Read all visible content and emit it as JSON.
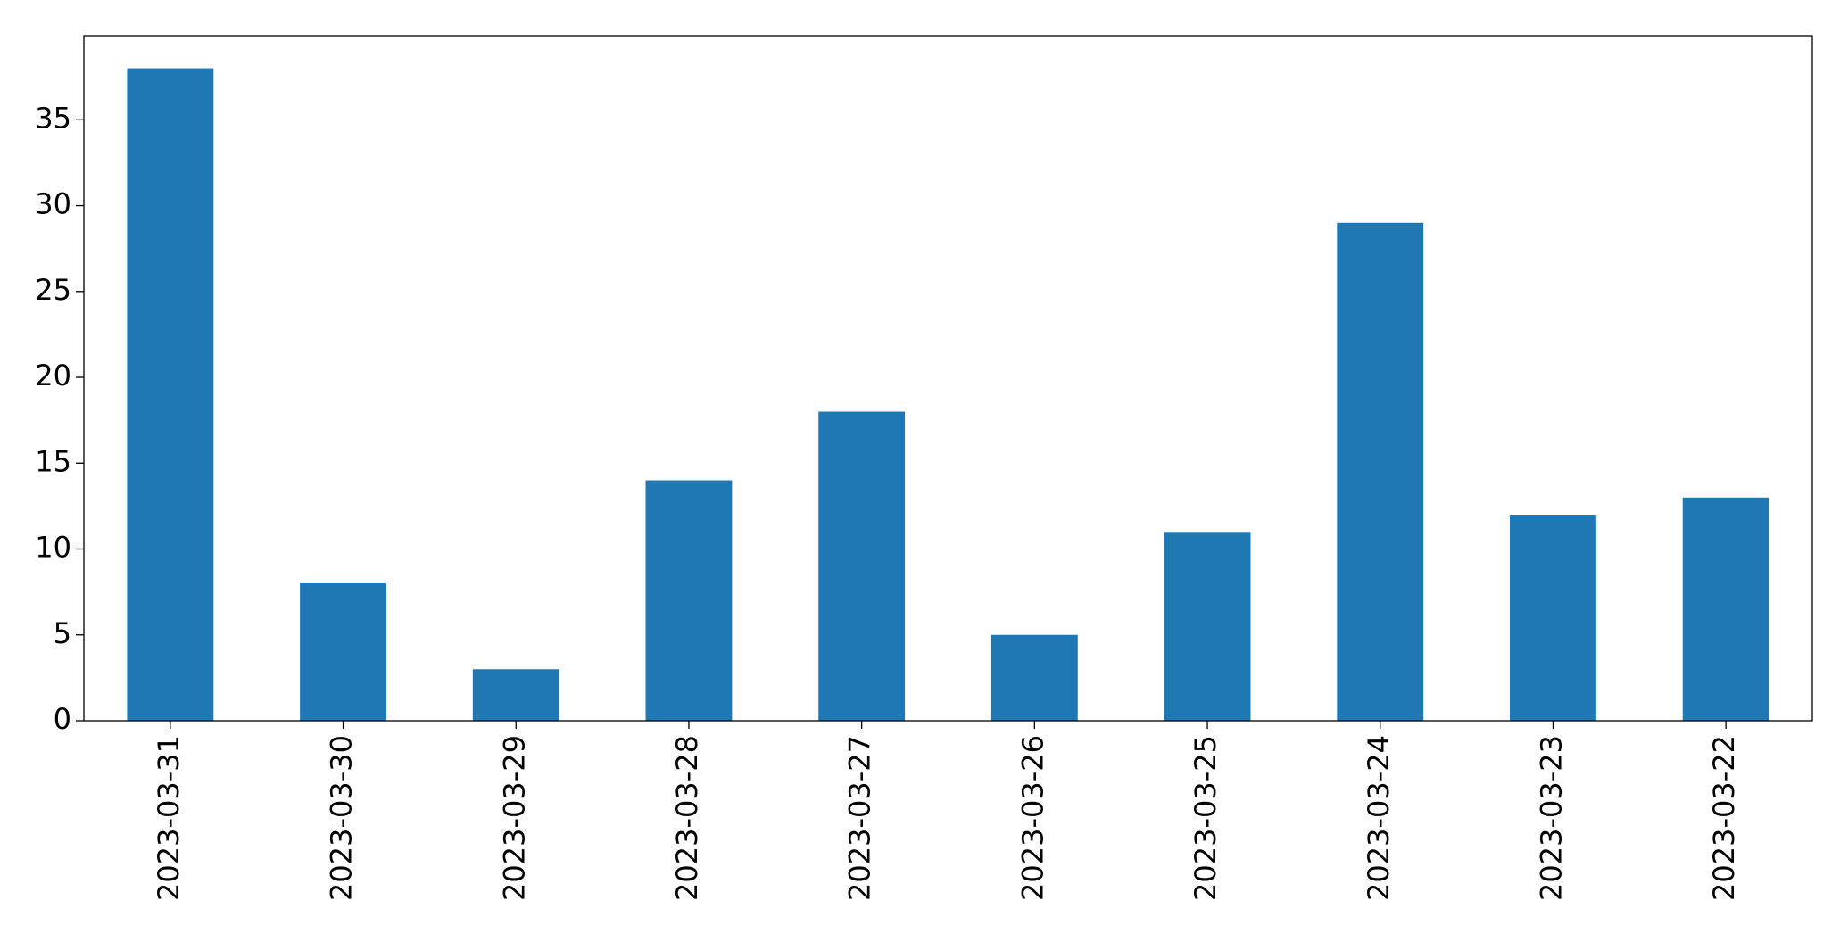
{
  "chart_data": {
    "type": "bar",
    "categories": [
      "2023-03-31",
      "2023-03-30",
      "2023-03-29",
      "2023-03-28",
      "2023-03-27",
      "2023-03-26",
      "2023-03-25",
      "2023-03-24",
      "2023-03-23",
      "2023-03-22"
    ],
    "values": [
      38,
      8,
      3,
      14,
      18,
      5,
      11,
      29,
      12,
      13
    ],
    "color": "#1f77b4",
    "ylim": [
      0,
      39.9
    ],
    "yticks": [
      0,
      5,
      10,
      15,
      20,
      25,
      30,
      35
    ],
    "grid": false
  }
}
